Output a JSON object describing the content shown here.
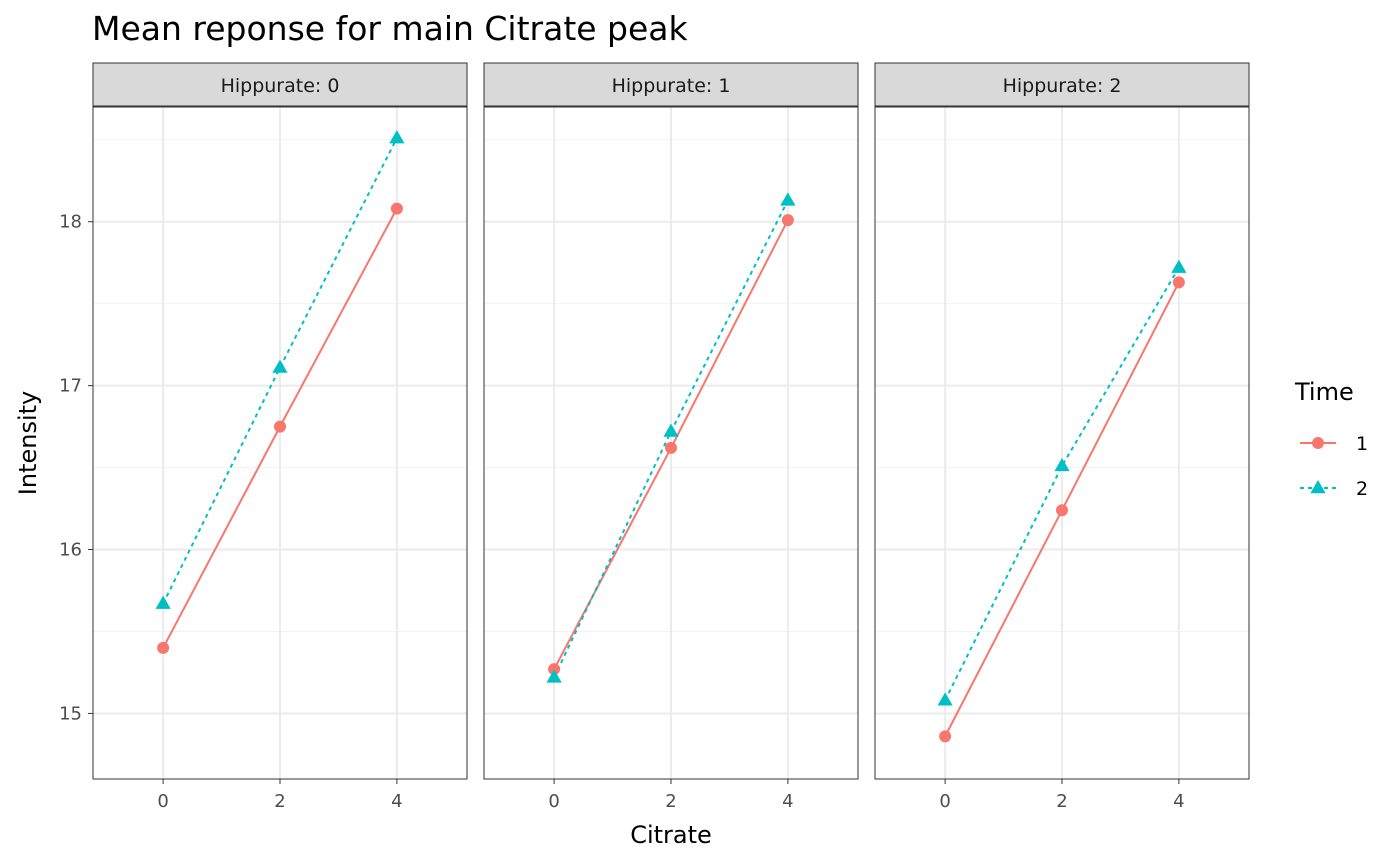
{
  "chart_data": {
    "type": "line",
    "title": "Mean reponse for main Citrate peak",
    "xlabel": "Citrate",
    "ylabel": "Intensity",
    "x": [
      0,
      2,
      4
    ],
    "x_ticks": [
      0,
      2,
      4
    ],
    "y_ticks": [
      15,
      16,
      17,
      18
    ],
    "xlim": [
      -1.2,
      5.2
    ],
    "ylim": [
      14.6,
      18.7
    ],
    "grid": true,
    "legend": {
      "title": "Time",
      "placement": "right",
      "entries": [
        {
          "label": "1",
          "color": "#F8766D",
          "marker": "circle",
          "line": "solid"
        },
        {
          "label": "2",
          "color": "#00BFC4",
          "marker": "triangle",
          "line": "dotted"
        }
      ]
    },
    "panels": [
      {
        "strip": "Hippurate: 0",
        "series": [
          {
            "name": "1",
            "values": [
              15.4,
              16.75,
              18.08
            ]
          },
          {
            "name": "2",
            "values": [
              15.67,
              17.11,
              18.51
            ]
          }
        ]
      },
      {
        "strip": "Hippurate: 1",
        "series": [
          {
            "name": "1",
            "values": [
              15.27,
              16.62,
              18.01
            ]
          },
          {
            "name": "2",
            "values": [
              15.22,
              16.72,
              18.13
            ]
          }
        ]
      },
      {
        "strip": "Hippurate: 2",
        "series": [
          {
            "name": "1",
            "values": [
              14.86,
              16.24,
              17.63
            ]
          },
          {
            "name": "2",
            "values": [
              15.08,
              16.51,
              17.72
            ]
          }
        ]
      }
    ]
  }
}
